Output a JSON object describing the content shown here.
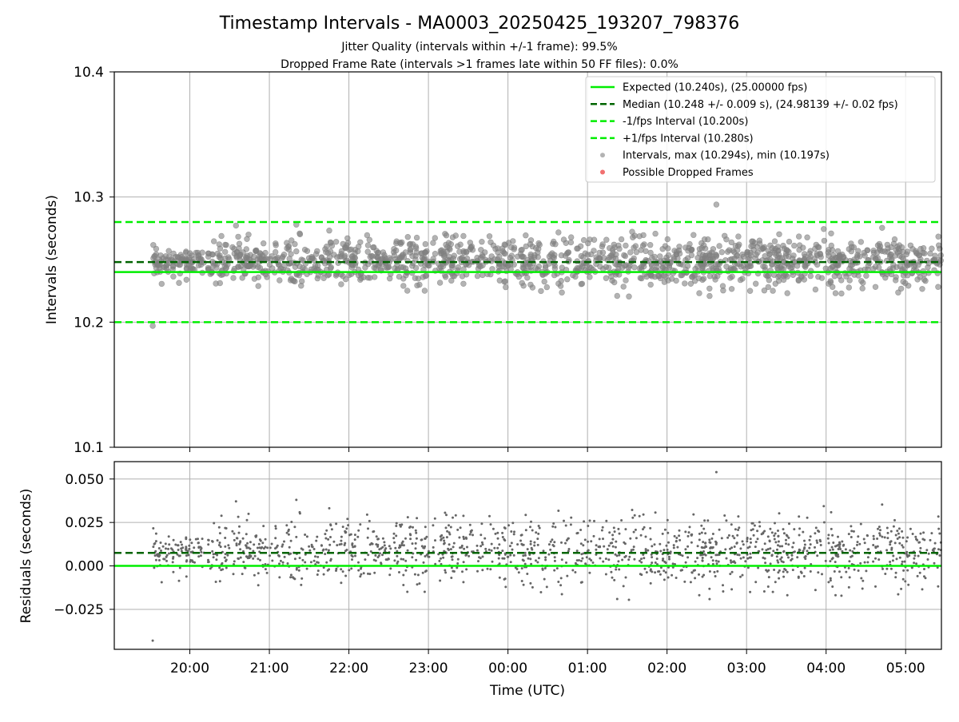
{
  "header": {
    "title": "Timestamp Intervals - MA0003_20250425_193207_798376",
    "subtitle1": "Jitter Quality (intervals within +/-1 frame): 99.5%",
    "subtitle2": "Dropped Frame Rate (intervals >1 frames late within 50 FF files): 0.0%"
  },
  "colors": {
    "expected": "#00ee00",
    "median": "#006400",
    "points": "#808080",
    "dropped": "#f06060",
    "grid": "#b0b0b0"
  },
  "chart_data": [
    {
      "type": "scatter",
      "name": "intervals",
      "ylabel": "Intervals (seconds)",
      "ylim": [
        10.1,
        10.4
      ],
      "yticks": [
        "10.1",
        "10.2",
        "10.3",
        "10.4"
      ],
      "xlim_hours": [
        19.05,
        29.45
      ],
      "grid": true,
      "legend_position": "top-right",
      "legend": [
        {
          "label": "Expected (10.240s), (25.00000 fps)",
          "style": "solid-line",
          "color": "#00ee00"
        },
        {
          "label": "Median (10.248 +/- 0.009 s), (24.98139 +/- 0.02 fps)",
          "style": "dashed-line",
          "color": "#006400"
        },
        {
          "label": "-1/fps Interval (10.200s)",
          "style": "dashed-line",
          "color": "#00ee00"
        },
        {
          "label": "+1/fps Interval (10.280s)",
          "style": "dashed-line",
          "color": "#00ee00"
        },
        {
          "label": "Intervals, max (10.294s), min (10.197s)",
          "style": "marker",
          "color": "#808080"
        },
        {
          "label": "Possible Dropped Frames",
          "style": "marker",
          "color": "#f06060"
        }
      ],
      "lines": [
        {
          "name": "expected",
          "y": 10.24,
          "style": "solid"
        },
        {
          "name": "median",
          "y": 10.248,
          "style": "dashed"
        },
        {
          "name": "minus-1fps",
          "y": 10.2,
          "style": "dashed"
        },
        {
          "name": "plus-1fps",
          "y": 10.28,
          "style": "dashed"
        }
      ],
      "series_description": {
        "x_start": "19:32",
        "x_end": "05:27",
        "center": 10.248,
        "max": 10.294,
        "min": 10.197
      }
    },
    {
      "type": "scatter",
      "name": "residuals",
      "ylabel": "Residuals (seconds)",
      "xlabel": "Time (UTC)",
      "ylim": [
        -0.048,
        0.06
      ],
      "yticks": [
        "−0.025",
        "0.000",
        "0.025",
        "0.050"
      ],
      "ytick_values": [
        -0.025,
        0.0,
        0.025,
        0.05
      ],
      "xticks": [
        "20:00",
        "21:00",
        "22:00",
        "23:00",
        "00:00",
        "01:00",
        "02:00",
        "03:00",
        "04:00",
        "05:00"
      ],
      "xtick_hours": [
        20,
        21,
        22,
        23,
        24,
        25,
        26,
        27,
        28,
        29
      ],
      "grid": true,
      "lines": [
        {
          "name": "expected",
          "y": 0.0,
          "style": "solid"
        },
        {
          "name": "median",
          "y": 0.0075,
          "style": "dashed"
        }
      ]
    }
  ]
}
